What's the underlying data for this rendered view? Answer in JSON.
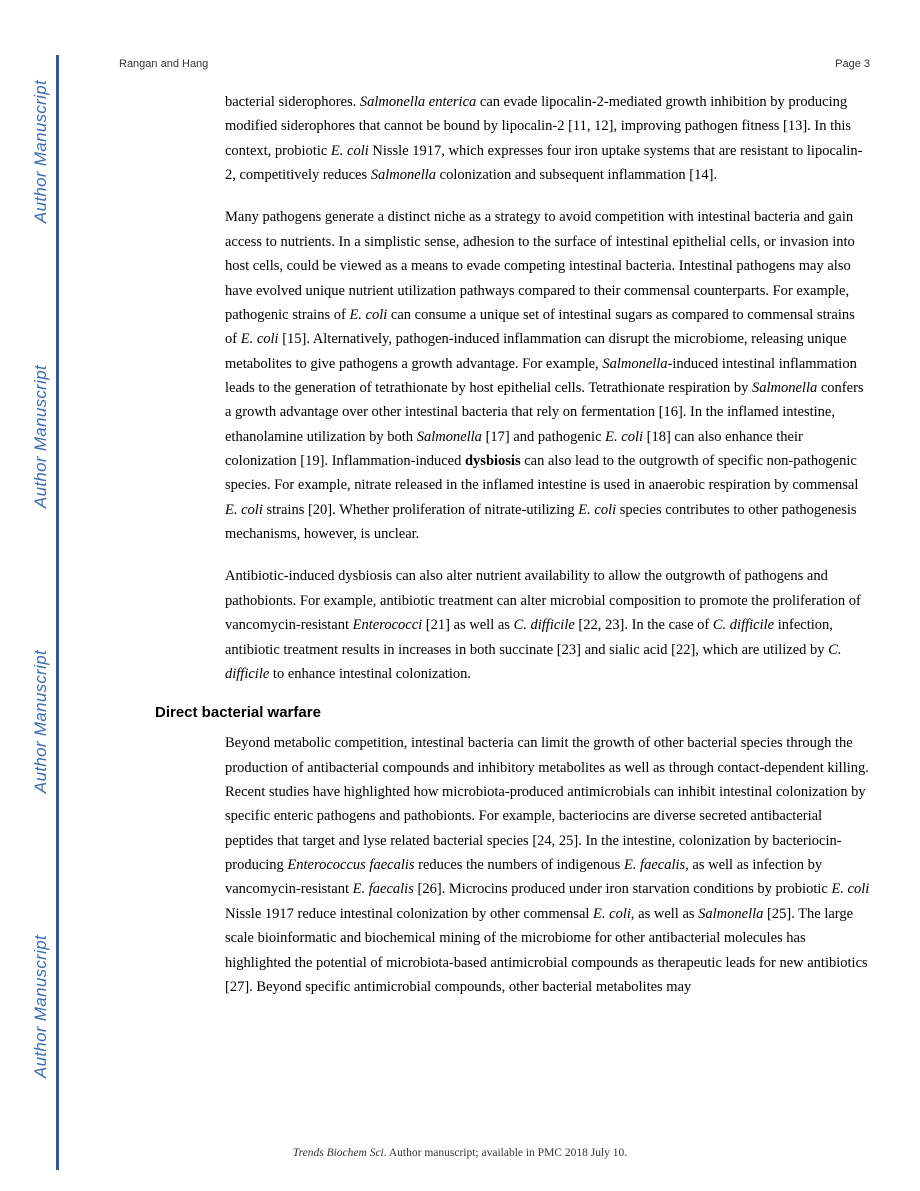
{
  "header": {
    "authors": "Rangan and Hang",
    "pageNumber": "Page 3"
  },
  "watermark": {
    "text": "Author Manuscript",
    "bar_color": "#2b5c9e",
    "text_color": "#3a6bb3"
  },
  "paragraphs": {
    "p1_part1": "bacterial siderophores. ",
    "p1_italic1": "Salmonella enterica",
    "p1_part2": " can evade lipocalin-2-mediated growth inhibition by producing modified siderophores that cannot be bound by lipocalin-2 [11, 12], improving pathogen fitness [13]. In this context, probiotic ",
    "p1_italic2": "E. coli",
    "p1_part3": " Nissle 1917, which expresses four iron uptake systems that are resistant to lipocalin-2, competitively reduces ",
    "p1_italic3": "Salmonella",
    "p1_part4": " colonization and subsequent inflammation [14].",
    "p2_part1": "Many pathogens generate a distinct niche as a strategy to avoid competition with intestinal bacteria and gain access to nutrients. In a simplistic sense, adhesion to the surface of intestinal epithelial cells, or invasion into host cells, could be viewed as a means to evade competing intestinal bacteria. Intestinal pathogens may also have evolved unique nutrient utilization pathways compared to their commensal counterparts. For example, pathogenic strains of ",
    "p2_italic1": "E. coli",
    "p2_part2": " can consume a unique set of intestinal sugars as compared to commensal strains of ",
    "p2_italic2": "E. coli",
    "p2_part3": " [15]. Alternatively, pathogen-induced inflammation can disrupt the microbiome, releasing unique metabolites to give pathogens a growth advantage. For example, ",
    "p2_italic3": "Salmonella",
    "p2_part4": "-induced intestinal inflammation leads to the generation of tetrathionate by host epithelial cells. Tetrathionate respiration by ",
    "p2_italic4": "Salmonella",
    "p2_part5": " confers a growth advantage over other intestinal bacteria that rely on fermentation [16]. In the inflamed intestine, ethanolamine utilization by both ",
    "p2_italic5": "Salmonella",
    "p2_part6": " [17] and pathogenic ",
    "p2_italic6": "E. coli",
    "p2_part7": " [18] can also enhance their colonization [19]. Inflammation-induced ",
    "p2_bold1": "dysbiosis",
    "p2_part8": " can also lead to the outgrowth of specific non-pathogenic species. For example, nitrate released in the inflamed intestine is used in anaerobic respiration by commensal ",
    "p2_italic7": "E. coli",
    "p2_part9": " strains [20]. Whether proliferation of nitrate-utilizing ",
    "p2_italic8": "E. coli",
    "p2_part10": " species contributes to other pathogenesis mechanisms, however, is unclear.",
    "p3_part1": "Antibiotic-induced dysbiosis can also alter nutrient availability to allow the outgrowth of pathogens and pathobionts. For example, antibiotic treatment can alter microbial composition to promote the proliferation of vancomycin-resistant ",
    "p3_italic1": "Enterococci",
    "p3_part2": " [21] as well as ",
    "p3_italic2": "C. difficile",
    "p3_part3": " [22, 23]. In the case of ",
    "p3_italic3": "C. difficile",
    "p3_part4": " infection, antibiotic treatment results in increases in both succinate [23] and sialic acid [22], which are utilized by ",
    "p3_italic4": "C. difficile",
    "p3_part5": " to enhance intestinal colonization."
  },
  "sectionHeading": "Direct bacterial warfare",
  "paragraphs2": {
    "p4_part1": "Beyond metabolic competition, intestinal bacteria can limit the growth of other bacterial species through the production of antibacterial compounds and inhibitory metabolites as well as through contact-dependent killing. Recent studies have highlighted how microbiota-produced antimicrobials can inhibit intestinal colonization by specific enteric pathogens and pathobionts. For example, bacteriocins are diverse secreted antibacterial peptides that target and lyse related bacterial species [24, 25]. In the intestine, colonization by bacteriocin-producing ",
    "p4_italic1": "Enterococcus faecalis",
    "p4_part2": " reduces the numbers of indigenous ",
    "p4_italic2": "E. faecalis",
    "p4_part3": ", as well as infection by vancomycin-resistant ",
    "p4_italic3": "E. faecalis",
    "p4_part4": " [26]. Microcins produced under iron starvation conditions by probiotic ",
    "p4_italic4": "E. coli",
    "p4_part5": " Nissle 1917 reduce intestinal colonization by other commensal ",
    "p4_italic5": "E. coli",
    "p4_part6": ", as well as ",
    "p4_italic6": "Salmonella",
    "p4_part7": " [25]. The large scale bioinformatic and biochemical mining of the microbiome for other antibacterial molecules has highlighted the potential of microbiota-based antimicrobial compounds as therapeutic leads for new antibiotics [27]. Beyond specific antimicrobial compounds, other bacterial metabolites may"
  },
  "footer": {
    "journal": "Trends Biochem Sci",
    "text": ". Author manuscript; available in PMC 2018 July 10."
  }
}
